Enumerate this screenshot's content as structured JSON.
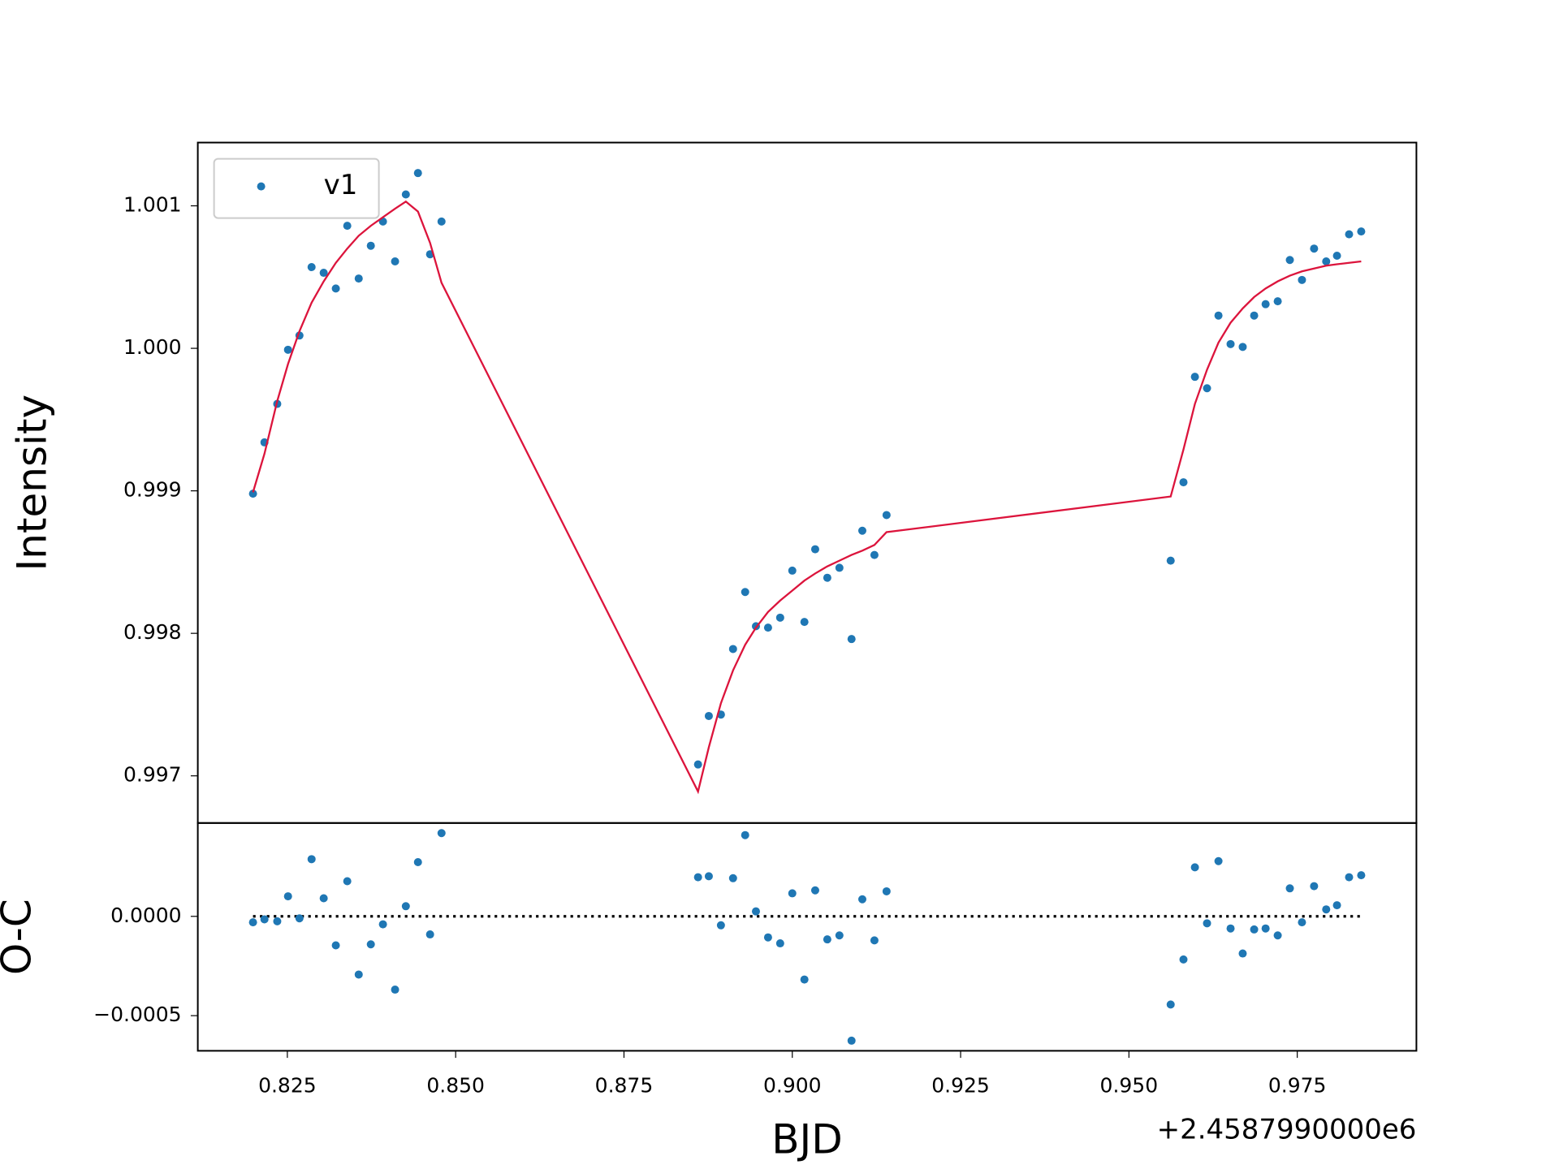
{
  "chart_data": [
    {
      "type": "scatter",
      "ylabel": "Intensity",
      "legend": "upper left",
      "grid": false,
      "xlim": [
        0.8117,
        0.9927
      ],
      "ylim": [
        0.996669,
        1.001444
      ],
      "yticks": [
        0.997,
        0.998,
        0.999,
        {
          "value": 1.0,
          "label": "1.000"
        },
        1.001
      ],
      "x": [
        0.8199,
        0.8216,
        0.8235,
        0.8251,
        0.8268,
        0.8286,
        0.8304,
        0.8322,
        0.8339,
        0.8356,
        0.8374,
        0.8392,
        0.841,
        0.8426,
        0.8444,
        0.8462,
        0.8479,
        0.886,
        0.8876,
        0.8894,
        0.8912,
        0.893,
        0.8946,
        0.8964,
        0.8982,
        0.9,
        0.9018,
        0.9034,
        0.9052,
        0.907,
        0.9088,
        0.9104,
        0.9122,
        0.914,
        0.9562,
        0.9581,
        0.9598,
        0.9616,
        0.9633,
        0.9651,
        0.9669,
        0.9686,
        0.9703,
        0.9721,
        0.9739,
        0.9757,
        0.9775,
        0.9793,
        0.9809,
        0.9827,
        0.9845
      ],
      "series": [
        {
          "name": "v1",
          "style": "points",
          "color": "#1f77b4",
          "values": [
            0.99898,
            0.99934,
            0.99961,
            0.99999,
            1.00009,
            1.00057,
            1.00053,
            1.00042,
            1.00086,
            1.00049,
            1.00072,
            1.00089,
            1.00061,
            1.00108,
            1.00123,
            1.00066,
            1.00089,
            0.99708,
            0.99742,
            0.99743,
            0.99789,
            0.99829,
            0.99805,
            0.99804,
            0.99811,
            0.99844,
            0.99808,
            0.99859,
            0.99839,
            0.99846,
            0.99796,
            0.99872,
            0.99855,
            0.99883,
            0.99851,
            0.99906,
            0.9998,
            0.99972,
            1.00023,
            1.00003,
            1.00001,
            1.00023,
            1.00031,
            1.00033,
            1.00062,
            1.00048,
            1.0007,
            1.00061,
            1.00065,
            1.0008,
            1.00082
          ]
        },
        {
          "style": "line",
          "color": "#dc143c",
          "values": [
            0.99899,
            0.99926,
            0.99963,
            0.99989,
            1.00012,
            1.00032,
            1.00047,
            1.0006,
            1.0007,
            1.00079,
            1.00086,
            1.00092,
            1.00098,
            1.00103,
            1.00096,
            1.00074,
            1.00046,
            0.99689,
            0.9972,
            0.99751,
            0.99774,
            0.99792,
            0.99804,
            0.99815,
            0.99823,
            0.9983,
            0.99837,
            0.99842,
            0.99847,
            0.99851,
            0.99855,
            0.99858,
            0.99862,
            0.99871,
            0.99896,
            0.99929,
            0.99961,
            0.99985,
            1.00004,
            1.00018,
            1.00028,
            1.00036,
            1.00042,
            1.00047,
            1.00051,
            1.00054,
            1.00056,
            1.00058,
            1.00059,
            1.0006,
            1.00061
          ]
        }
      ]
    },
    {
      "type": "scatter",
      "ylabel": "O-C",
      "xlabel": "BJD",
      "x_offset_label": "+2.4587990000e6",
      "grid": false,
      "xlim": [
        0.8117,
        0.9927
      ],
      "ylim": [
        -0.000677,
        0.00047
      ],
      "xticks": [
        0.825,
        {
          "value": 0.85,
          "label": "0.850"
        },
        0.875,
        {
          "value": 0.9,
          "label": "0.900"
        },
        0.925,
        {
          "value": 0.95,
          "label": "0.950"
        },
        0.975
      ],
      "yticks": [
        {
          "value": 0,
          "label": "0.0000"
        },
        {
          "value": -0.0005,
          "label": "−0.0005"
        }
      ],
      "reference_line": {
        "y": 0,
        "style": "dotted",
        "color": "#000000"
      },
      "x": [
        0.8199,
        0.8216,
        0.8235,
        0.8251,
        0.8268,
        0.8286,
        0.8304,
        0.8322,
        0.8339,
        0.8356,
        0.8374,
        0.8392,
        0.841,
        0.8426,
        0.8444,
        0.8462,
        0.8479,
        0.886,
        0.8876,
        0.8894,
        0.8912,
        0.893,
        0.8946,
        0.8964,
        0.8982,
        0.9,
        0.9018,
        0.9034,
        0.9052,
        0.907,
        0.9088,
        0.9104,
        0.9122,
        0.914,
        0.9562,
        0.9581,
        0.9598,
        0.9616,
        0.9633,
        0.9651,
        0.9669,
        0.9686,
        0.9703,
        0.9721,
        0.9739,
        0.9757,
        0.9775,
        0.9793,
        0.9809,
        0.9827,
        0.9845
      ],
      "series": [
        {
          "style": "points",
          "color": "#1f77b4",
          "values": [
            -3e-05,
            -1.5e-05,
            -2.5e-05,
            0.000101,
            -1e-05,
            0.000288,
            9.1e-05,
            -0.000146,
            0.000177,
            -0.000293,
            -0.000141,
            -4e-05,
            -0.000369,
            5.1e-05,
            0.000273,
            -9.1e-05,
            0.000419,
            0.000197,
            0.000202,
            -4.5e-05,
            0.000192,
            0.000409,
            2.5e-05,
            -0.000106,
            -0.000136,
            0.000116,
            -0.000318,
            0.000131,
            -0.000116,
            -9.6e-05,
            -0.000626,
            8.6e-05,
            -0.000121,
            0.000126,
            -0.000444,
            -0.000217,
            0.000247,
            -3.5e-05,
            0.000278,
            -6.1e-05,
            -0.000187,
            -6.6e-05,
            -6.1e-05,
            -9.6e-05,
            0.000141,
            -3e-05,
            0.000152,
            3.5e-05,
            5.6e-05,
            0.000197,
            0.000207
          ]
        }
      ]
    }
  ]
}
